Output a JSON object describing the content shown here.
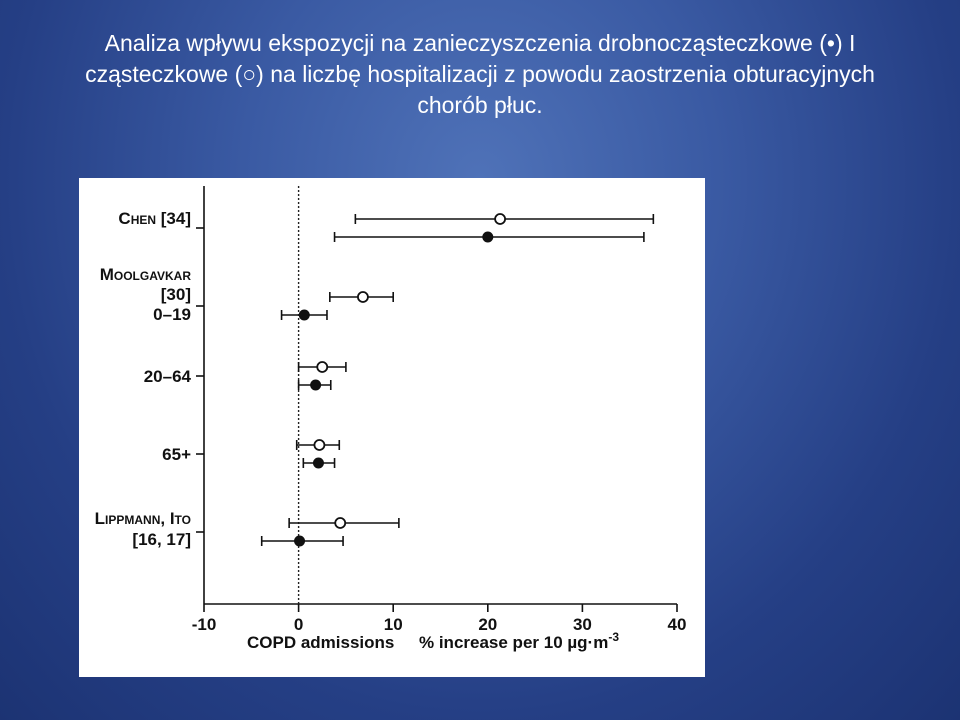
{
  "slide": {
    "title_line1": "Analiza wpływu ekspozycji na zanieczyszczenia drobnocząsteczkowe (•) I",
    "title_line2": "cząsteczkowe (○) na liczbę hospitalizacji z powodu zaostrzenia obturacyjnych",
    "title_line3": "chorób płuc."
  },
  "chart_data": {
    "type": "forest",
    "xlim": [
      -10,
      40
    ],
    "x_ticks": [
      "-10",
      "0",
      "10",
      "20",
      "30",
      "40"
    ],
    "reference_line_x": 0,
    "xlabel_left": "COPD admissions",
    "xlabel_right": "% increase per 10 µg·m",
    "xlabel_right_sup": "-3",
    "legend": {
      "filled_marker": "•",
      "open_marker": "○"
    },
    "groups": [
      {
        "label_lines": [
          "Chen [34]"
        ],
        "estimates": [
          {
            "marker": "open",
            "value": 21.3,
            "ci": [
              6,
              37.5
            ]
          },
          {
            "marker": "filled",
            "value": 20,
            "ci": [
              3.8,
              36.5
            ]
          }
        ]
      },
      {
        "label_lines": [
          "Moolgavkar",
          "[30]",
          "0–19"
        ],
        "estimates": [
          {
            "marker": "open",
            "value": 6.8,
            "ci": [
              3.3,
              10
            ]
          },
          {
            "marker": "filled",
            "value": 0.6,
            "ci": [
              -1.8,
              3
            ]
          }
        ]
      },
      {
        "label_lines": [
          "20–64"
        ],
        "estimates": [
          {
            "marker": "open",
            "value": 2.5,
            "ci": [
              0,
              5
            ]
          },
          {
            "marker": "filled",
            "value": 1.8,
            "ci": [
              0,
              3.4
            ]
          }
        ]
      },
      {
        "label_lines": [
          "65+"
        ],
        "estimates": [
          {
            "marker": "open",
            "value": 2.2,
            "ci": [
              -0.2,
              4.3
            ]
          },
          {
            "marker": "filled",
            "value": 2.1,
            "ci": [
              0.5,
              3.8
            ]
          }
        ]
      },
      {
        "label_lines": [
          "Lippmann, Ito",
          "[16, 17]"
        ],
        "estimates": [
          {
            "marker": "open",
            "value": 4.4,
            "ci": [
              -1,
              10.6
            ]
          },
          {
            "marker": "filled",
            "value": 0.1,
            "ci": [
              -3.9,
              4.7
            ]
          }
        ]
      }
    ]
  }
}
